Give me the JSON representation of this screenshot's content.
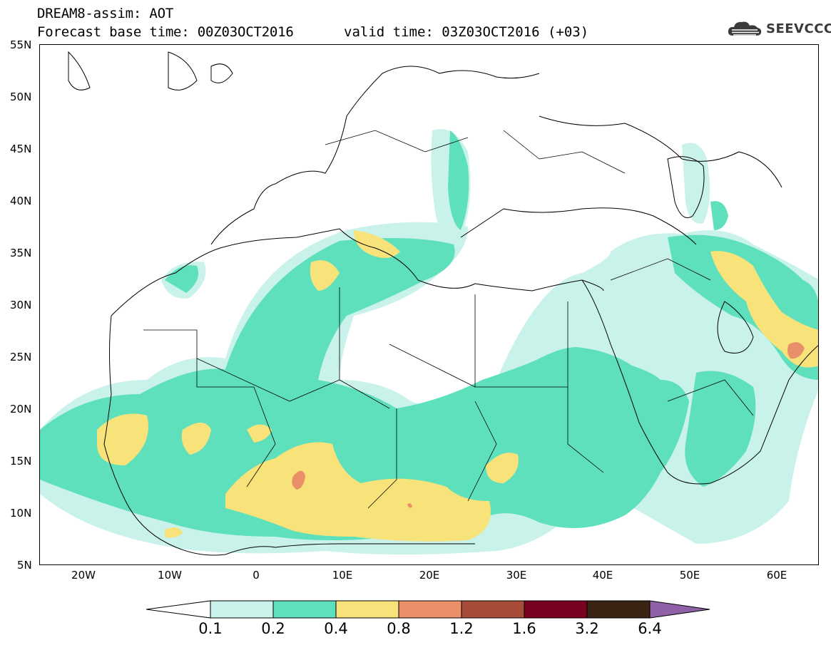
{
  "header": {
    "title": "DREAM8-assim: AOT",
    "base_time": "Forecast base time: 00Z03OCT2016",
    "valid_time": "valid time: 03Z03OCT2016 (+03)"
  },
  "logo": {
    "text": "SEEVCCC",
    "icon": "cloud-icon"
  },
  "map": {
    "lat_labels": [
      "55N",
      "50N",
      "45N",
      "40N",
      "35N",
      "30N",
      "25N",
      "20N",
      "15N",
      "10N",
      "5N"
    ],
    "lon_labels": [
      "20W",
      "10W",
      "0",
      "10E",
      "20E",
      "30E",
      "40E",
      "50E",
      "60E"
    ]
  },
  "legend": {
    "labels": [
      "0.1",
      "0.2",
      "0.4",
      "0.8",
      "1.2",
      "1.6",
      "3.2",
      "6.4"
    ],
    "colors": [
      "#ffffff",
      "#c9f2ea",
      "#5fe0bd",
      "#f8e27a",
      "#e9906a",
      "#a84c3a",
      "#7a0020",
      "#3b2414",
      "#8f62a8"
    ]
  }
}
